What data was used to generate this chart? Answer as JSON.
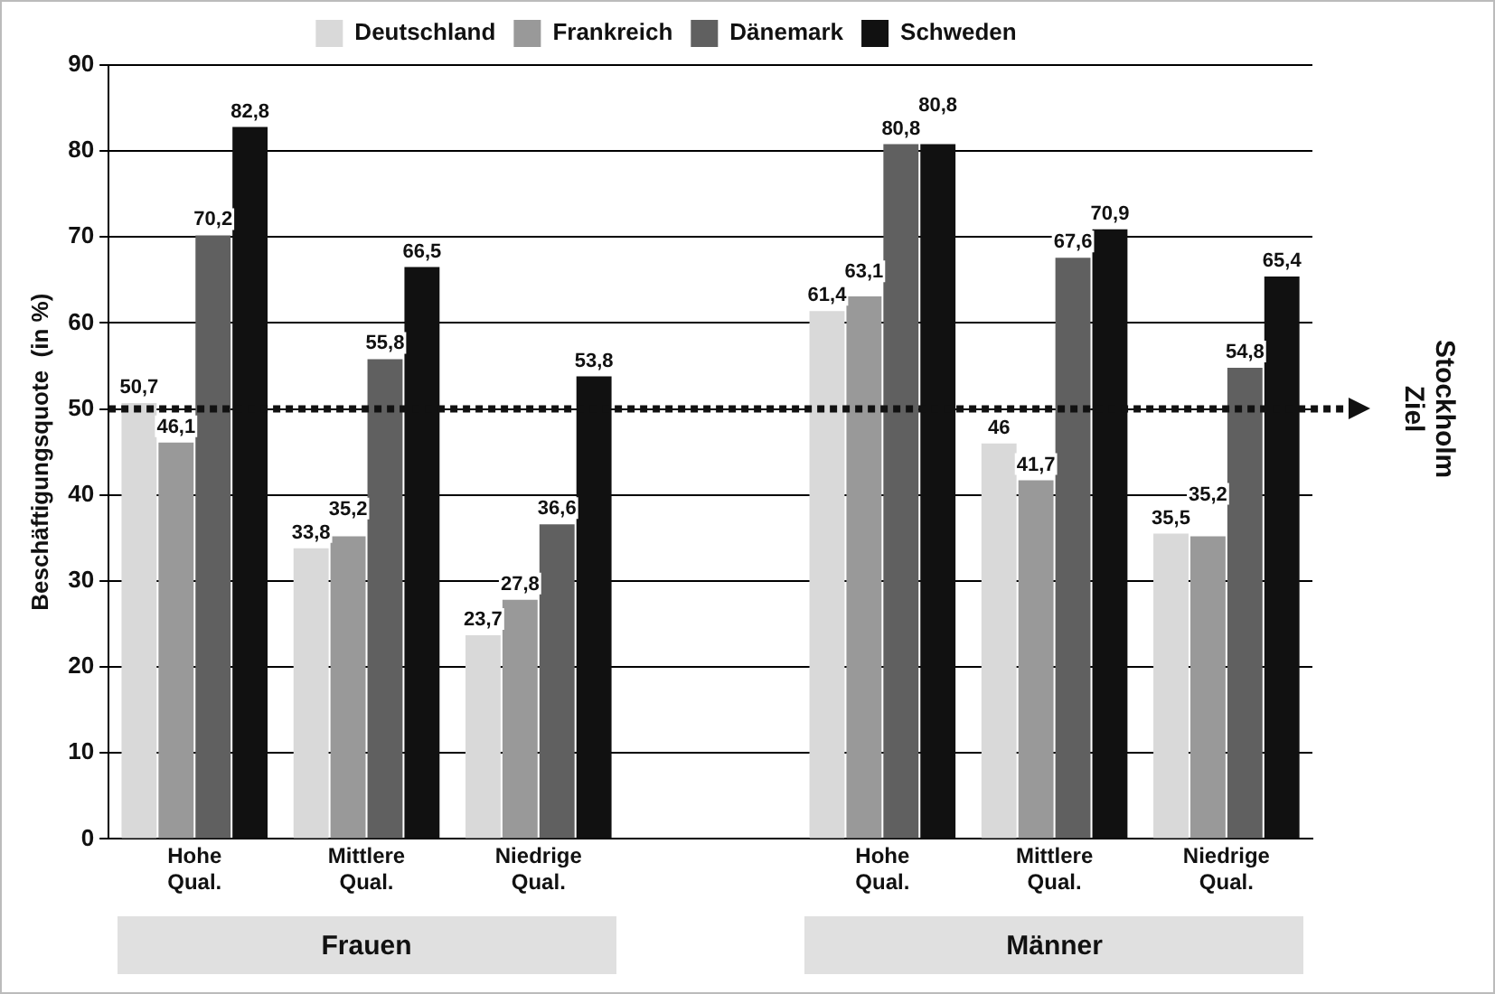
{
  "chart_data": {
    "type": "bar",
    "ylabel": "Beschäftigungsquote  (in %)",
    "categories": [
      "Hohe Qual.",
      "Mittlere Qual.",
      "Niedrige Qual.",
      null,
      "Hohe Qual.",
      "Mittlere Qual.",
      "Niedrige Qual."
    ],
    "series": [
      {
        "name": "Deutschland",
        "color": "#d9d9d9",
        "values": [
          50.7,
          33.8,
          23.7,
          null,
          61.4,
          46,
          35.5
        ],
        "value_labels": [
          "50,7",
          "33,8",
          "23,7",
          null,
          "61,4",
          "46",
          "35,5"
        ]
      },
      {
        "name": "Frankreich",
        "color": "#999999",
        "values": [
          46.1,
          35.2,
          27.8,
          null,
          63.1,
          41.7,
          35.2
        ],
        "value_labels": [
          "46,1",
          "35,2",
          "27,8",
          null,
          "63,1",
          "41,7",
          "35,2"
        ]
      },
      {
        "name": "Dänemark",
        "color": "#606060",
        "values": [
          70.2,
          55.8,
          36.6,
          null,
          80.8,
          67.6,
          54.8
        ],
        "value_labels": [
          "70,2",
          "55,8",
          "36,6",
          null,
          "80,8",
          "67,6",
          "54,8"
        ]
      },
      {
        "name": "Schweden",
        "color": "#111111",
        "values": [
          82.8,
          66.5,
          53.8,
          null,
          80.8,
          70.9,
          65.4
        ],
        "value_labels": [
          "82,8",
          "66,5",
          "53,8",
          null,
          "80,8",
          "70,9",
          "65,4"
        ]
      }
    ],
    "ylim": [
      0,
      90
    ],
    "yticks": [
      0,
      10,
      20,
      30,
      40,
      50,
      60,
      70,
      80,
      90
    ],
    "grid": "y",
    "legend": "top",
    "ref_lines": [
      {
        "axis": "y",
        "value": 50,
        "label": "Ziel Stockholm",
        "color": "#111111",
        "line_style": "dotted"
      }
    ],
    "annotations": [
      {
        "text": "Frauen"
      },
      {
        "text": "Männer"
      }
    ]
  }
}
